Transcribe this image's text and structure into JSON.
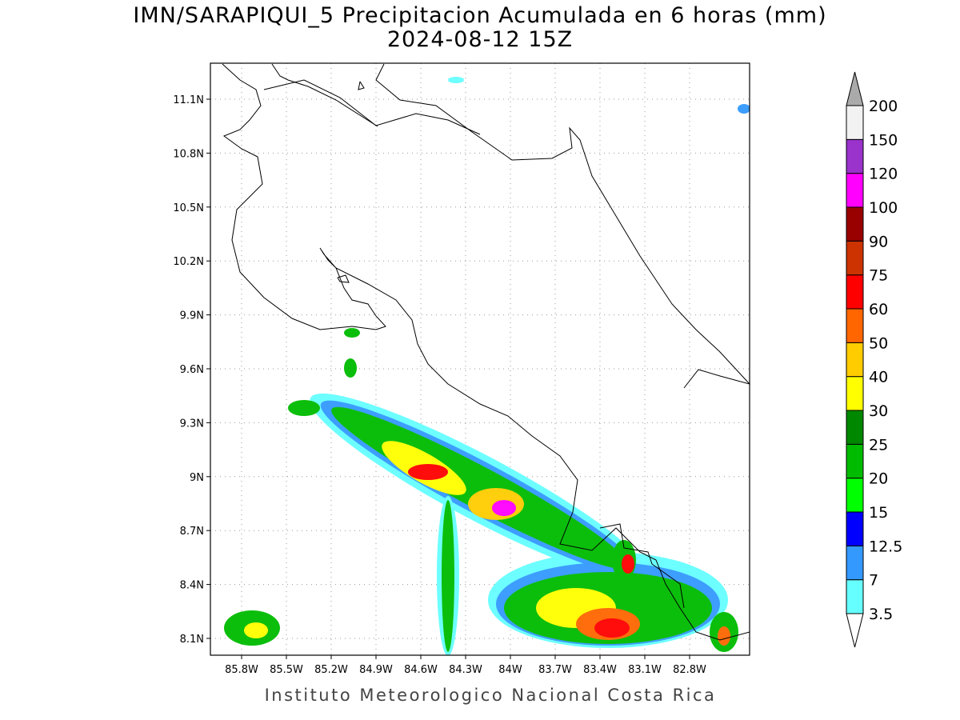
{
  "header": {
    "title": "IMN/SARAPIQUI_5 Precipitacion Acumulada en 6 horas (mm)",
    "subtitle": "2024-08-12 15Z"
  },
  "map": {
    "lat_labels": [
      "11.1N",
      "10.8N",
      "10.5N",
      "10.2N",
      "9.9N",
      "9.6N",
      "9.3N",
      "9N",
      "8.7N",
      "8.4N",
      "8.1N"
    ],
    "lon_labels": [
      "85.8W",
      "85.5W",
      "85.2W",
      "84.9W",
      "84.6W",
      "84.3W",
      "84W",
      "83.7W",
      "83.4W",
      "83.1W",
      "82.8W"
    ]
  },
  "colorbar": {
    "levels": [
      "3.5",
      "7",
      "12.5",
      "15",
      "20",
      "25",
      "30",
      "40",
      "50",
      "60",
      "75",
      "90",
      "100",
      "120",
      "150",
      "200"
    ],
    "band_colors": [
      "#66ffff",
      "#3399ff",
      "#0000ff",
      "#00ff00",
      "#00bb00",
      "#008800",
      "#ffff00",
      "#ffcc00",
      "#ff6600",
      "#ff0000",
      "#cc3300",
      "#990000",
      "#ff00ff",
      "#9933cc",
      "#f2f2f2"
    ],
    "over_color": "#aaaaaa",
    "under_color": "#ffffff"
  },
  "footer": "Instituto Meteorologico Nacional Costa Rica"
}
